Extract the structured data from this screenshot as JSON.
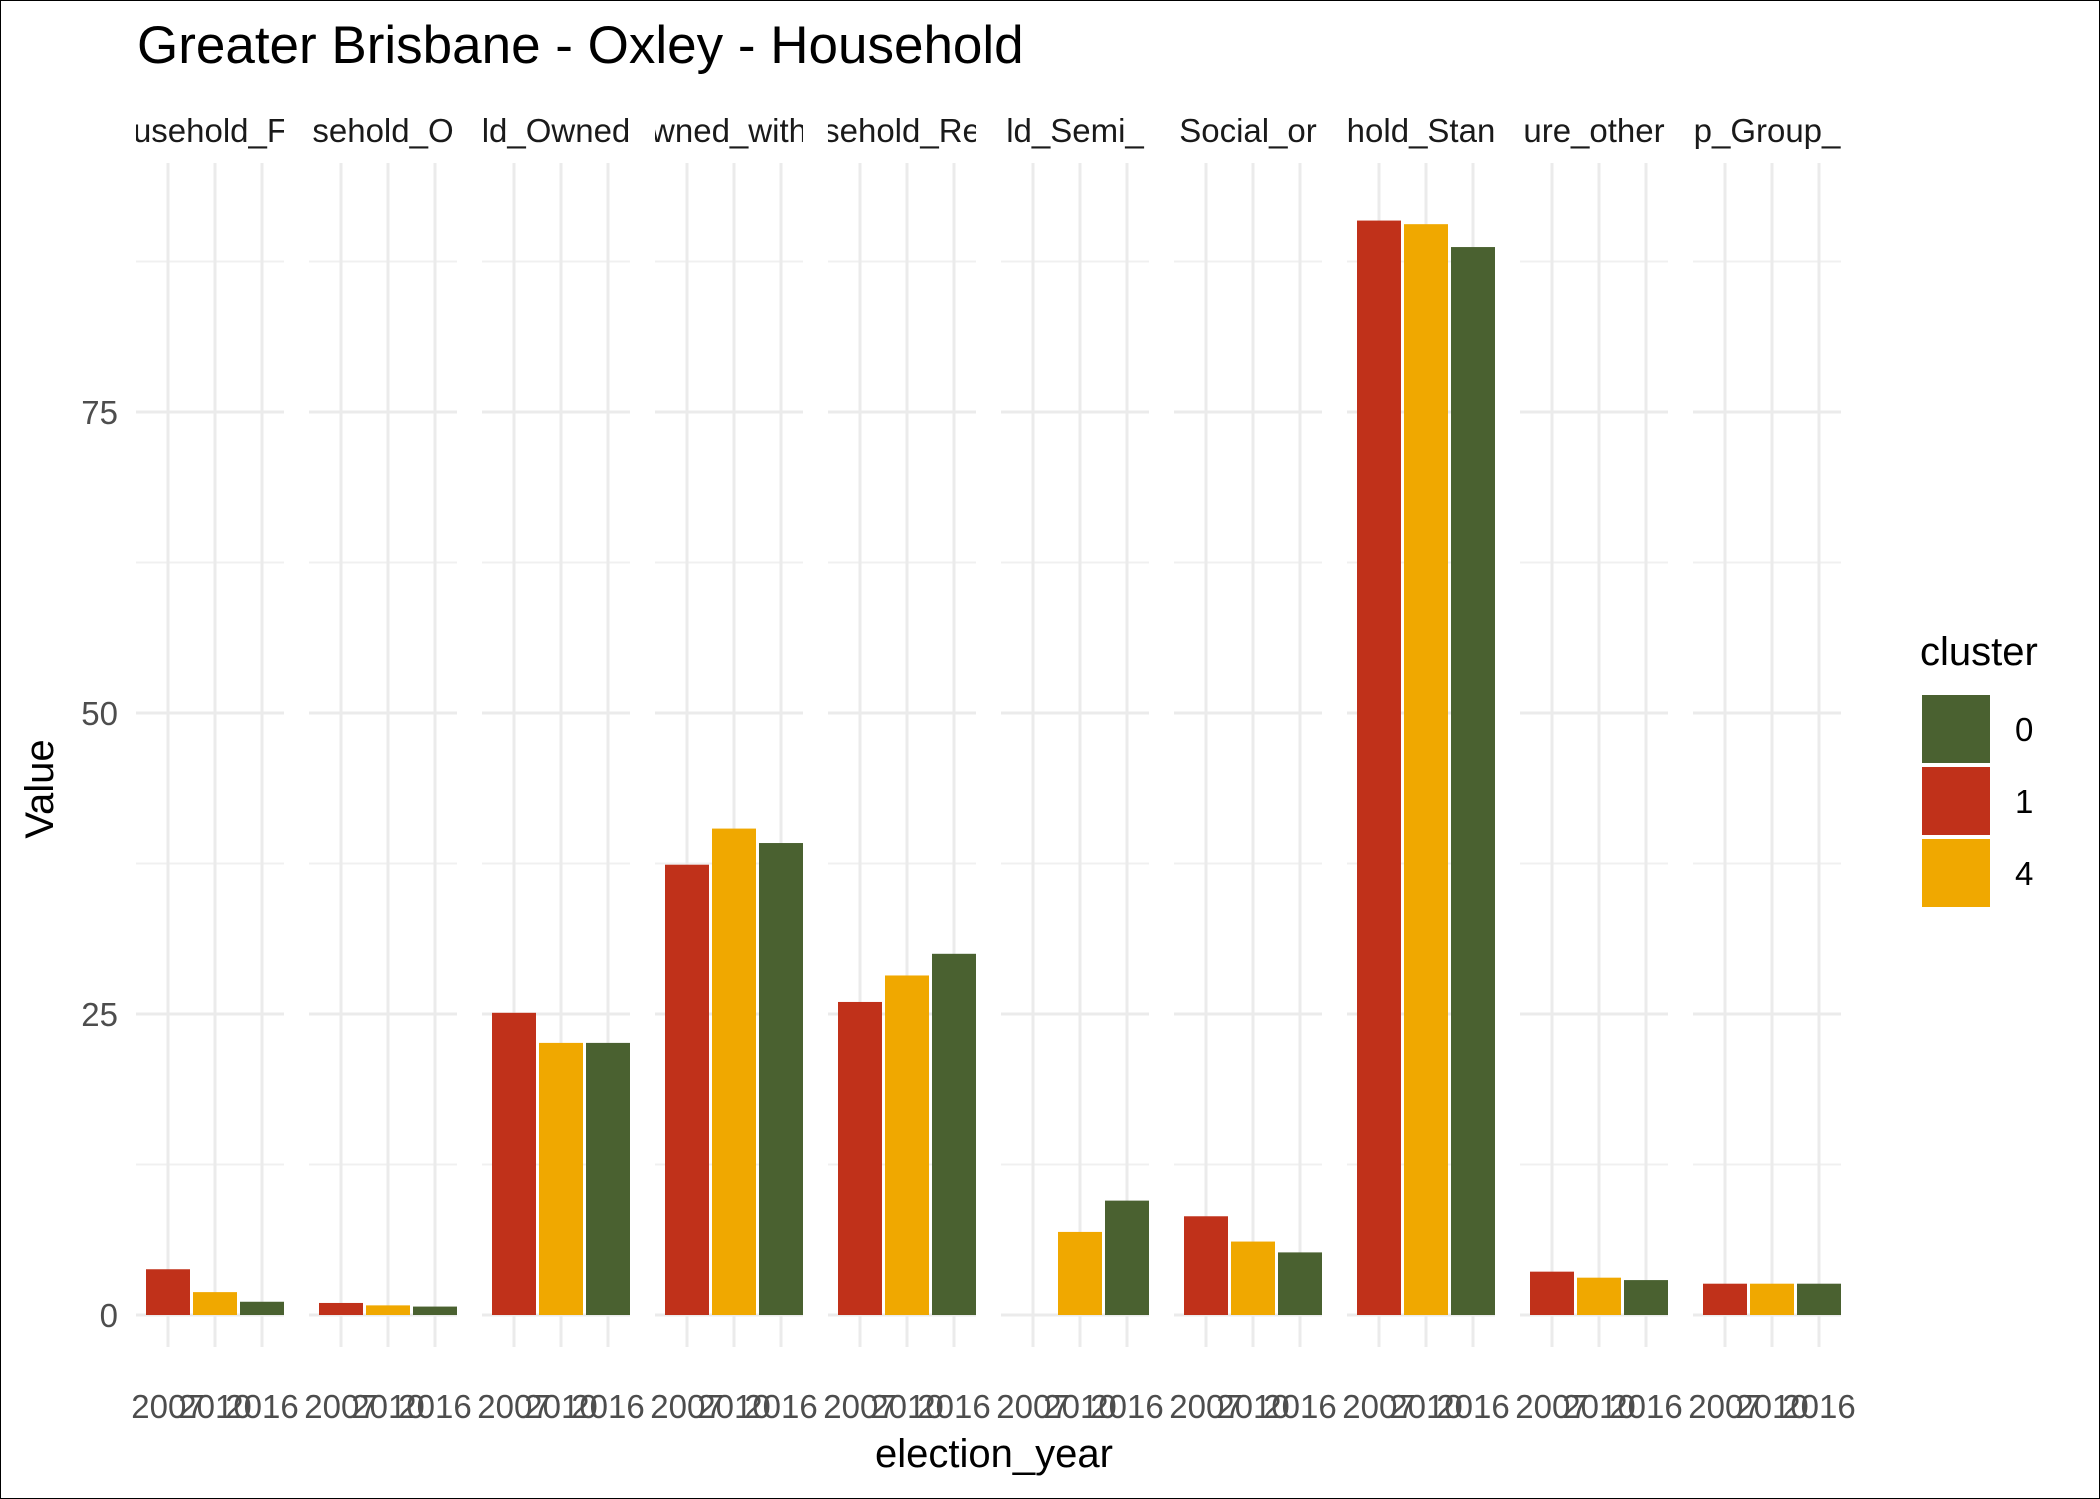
{
  "chart_data": {
    "type": "bar",
    "title": "Greater Brisbane - Oxley - Household",
    "xlabel": "election_year",
    "ylabel": "Value",
    "ylim": [
      0,
      95
    ],
    "y_ticks": [
      0,
      25,
      50,
      75
    ],
    "grid": true,
    "legend": {
      "title": "cluster",
      "position": "right",
      "entries": [
        {
          "label": "0",
          "color": "#4a6130"
        },
        {
          "label": "1",
          "color": "#c0311a"
        },
        {
          "label": "4",
          "color": "#f0a800"
        }
      ]
    },
    "x_categories": [
      "2007",
      "2010",
      "2016"
    ],
    "panels": [
      {
        "label": "usehold_F",
        "bars": [
          {
            "x": "2007",
            "value": 3.8,
            "cluster": "1"
          },
          {
            "x": "2010",
            "value": 1.9,
            "cluster": "4"
          },
          {
            "x": "2016",
            "value": 1.1,
            "cluster": "0"
          }
        ]
      },
      {
        "label": "sehold_O",
        "bars": [
          {
            "x": "2007",
            "value": 1.0,
            "cluster": "1"
          },
          {
            "x": "2010",
            "value": 0.8,
            "cluster": "4"
          },
          {
            "x": "2016",
            "value": 0.7,
            "cluster": "0"
          }
        ]
      },
      {
        "label": "ld_Owned",
        "bars": [
          {
            "x": "2007",
            "value": 25.1,
            "cluster": "1"
          },
          {
            "x": "2010",
            "value": 22.6,
            "cluster": "4"
          },
          {
            "x": "2016",
            "value": 22.6,
            "cluster": "0"
          }
        ]
      },
      {
        "label": "wned_with",
        "bars": [
          {
            "x": "2007",
            "value": 37.4,
            "cluster": "1"
          },
          {
            "x": "2010",
            "value": 40.4,
            "cluster": "4"
          },
          {
            "x": "2016",
            "value": 39.2,
            "cluster": "0"
          }
        ]
      },
      {
        "label": "sehold_Re",
        "bars": [
          {
            "x": "2007",
            "value": 26.0,
            "cluster": "1"
          },
          {
            "x": "2010",
            "value": 28.2,
            "cluster": "4"
          },
          {
            "x": "2016",
            "value": 30.0,
            "cluster": "0"
          }
        ]
      },
      {
        "label": "ld_Semi_",
        "bars": [
          {
            "x": "2010",
            "value": 6.9,
            "cluster": "4"
          },
          {
            "x": "2016",
            "value": 9.5,
            "cluster": "0"
          }
        ]
      },
      {
        "label": "Social_or",
        "bars": [
          {
            "x": "2007",
            "value": 8.2,
            "cluster": "1"
          },
          {
            "x": "2010",
            "value": 6.1,
            "cluster": "4"
          },
          {
            "x": "2016",
            "value": 5.2,
            "cluster": "0"
          }
        ]
      },
      {
        "label": "hold_Stan",
        "bars": [
          {
            "x": "2007",
            "value": 90.9,
            "cluster": "1"
          },
          {
            "x": "2010",
            "value": 90.6,
            "cluster": "4"
          },
          {
            "x": "2016",
            "value": 88.7,
            "cluster": "0"
          }
        ]
      },
      {
        "label": "ure_other",
        "bars": [
          {
            "x": "2007",
            "value": 3.6,
            "cluster": "1"
          },
          {
            "x": "2010",
            "value": 3.1,
            "cluster": "4"
          },
          {
            "x": "2016",
            "value": 2.9,
            "cluster": "0"
          }
        ]
      },
      {
        "label": "p_Group_",
        "bars": [
          {
            "x": "2007",
            "value": 2.6,
            "cluster": "1"
          },
          {
            "x": "2010",
            "value": 2.6,
            "cluster": "4"
          },
          {
            "x": "2016",
            "value": 2.6,
            "cluster": "0"
          }
        ]
      }
    ]
  }
}
